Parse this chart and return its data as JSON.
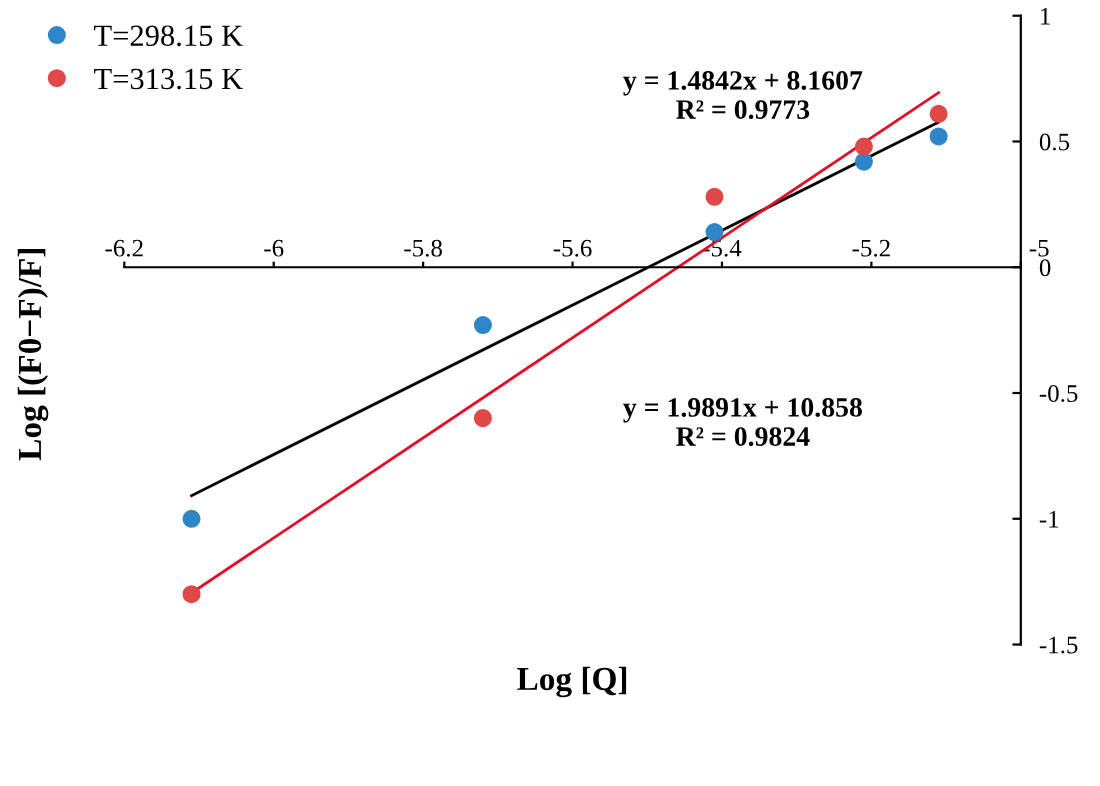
{
  "chart_data": {
    "type": "scatter",
    "xlabel": "Log [Q]",
    "ylabel": "Log [(F0−F)/F]",
    "series": [
      {
        "name": "T=298.15 K",
        "color": "#2e86c8",
        "marker": "circle",
        "x": [
          -6.11,
          -5.72,
          -5.41,
          -5.21,
          -5.11
        ],
        "values": [
          -1.0,
          -0.23,
          0.14,
          0.42,
          0.52
        ]
      },
      {
        "name": "T=313.15 K",
        "color": "#e04848",
        "marker": "circle",
        "x": [
          -6.11,
          -5.72,
          -5.41,
          -5.21,
          -5.11
        ],
        "values": [
          -1.3,
          -0.6,
          0.28,
          0.48,
          0.61
        ]
      },
      {
        "type": "line",
        "color": "#000000",
        "x": [
          -6.11,
          -5.11
        ],
        "values": [
          -0.908,
          0.577
        ]
      },
      {
        "type": "line",
        "color": "#e0102a",
        "x": [
          -6.11,
          -5.11
        ],
        "values": [
          -1.295,
          0.694
        ]
      }
    ],
    "annotations": [
      "y = 1.4842x + 8.1607\nR² = 0.9773",
      "y = 1.9891x + 10.858\nR² = 0.9824"
    ],
    "xlim": [
      -6.2,
      -5
    ],
    "ylim": [
      -1.5,
      1
    ],
    "xticks": [
      -6.2,
      -6,
      -5.8,
      -5.6,
      -5.4,
      -5.2,
      -5
    ],
    "yticks": [
      -1.5,
      -1,
      -0.5,
      0,
      0.5,
      1
    ],
    "grid": false,
    "legend": "top left"
  }
}
